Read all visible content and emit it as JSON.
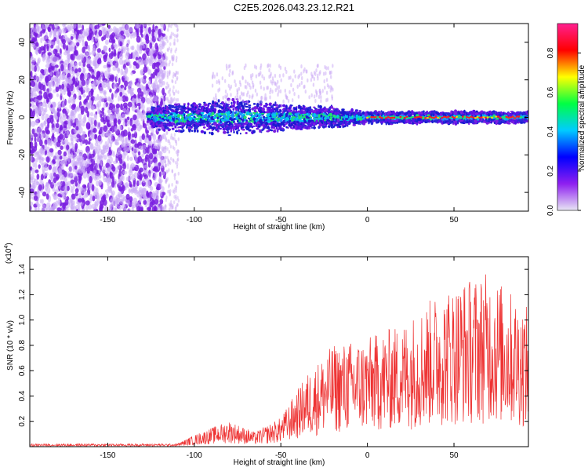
{
  "title": "C2E5.2026.043.23.12.R21",
  "colors": {
    "signal": "#ee3333",
    "scatter_strong": "#7a1fe0",
    "scatter_faint": "#c9a8f5",
    "band_core": "#2a2ad8",
    "axis": "#000000"
  },
  "chart_data": [
    {
      "type": "heatmap",
      "name": "spectrogram",
      "xlabel": "Height of straight line (km)",
      "ylabel": "Frequency (Hz)",
      "xlim": [
        -195,
        93
      ],
      "ylim": [
        -50,
        50
      ],
      "xticks": [
        -150,
        -100,
        -50,
        0,
        50
      ],
      "xtick_labels": [
        "-150",
        "-100",
        "-50",
        "0",
        "50"
      ],
      "yticks": [
        -40,
        -20,
        0,
        20,
        40
      ],
      "ytick_labels": [
        "-40",
        "-20",
        "0",
        "20",
        "40"
      ],
      "noise_region": {
        "x_from": -195,
        "x_to": -117,
        "freq_range": [
          -50,
          50
        ]
      },
      "band": [
        {
          "x": -125,
          "half_width": 5
        },
        {
          "x": -110,
          "half_width": 7
        },
        {
          "x": -95,
          "half_width": 7
        },
        {
          "x": -80,
          "half_width": 9
        },
        {
          "x": -60,
          "half_width": 7
        },
        {
          "x": -40,
          "half_width": 6
        },
        {
          "x": -20,
          "half_width": 5
        },
        {
          "x": 0,
          "half_width": 3
        },
        {
          "x": 50,
          "half_width": 3
        },
        {
          "x": 93,
          "half_width": 3
        }
      ],
      "peak_line": {
        "x_from": 0,
        "x_to": 90,
        "freq": 0
      },
      "colorbar": {
        "label": "Normalized spectral amplitude",
        "range": [
          0,
          0.95
        ],
        "ticks": [
          0.0,
          0.2,
          0.4,
          0.6,
          0.8
        ],
        "tick_labels": [
          "0.0",
          "0.2",
          "0.4",
          "0.6",
          "0.8"
        ],
        "colors": [
          "#e8e6f4",
          "#8e1ff0",
          "#0000ff",
          "#00ccff",
          "#00ff44",
          "#ffff00",
          "#ff0000",
          "#ff2090"
        ]
      }
    },
    {
      "type": "line",
      "name": "snr",
      "xlabel": "Height of straight line (km)",
      "ylabel": "SNR (10 * v/v)",
      "scale_label": "(x10",
      "scale_exponent": "4",
      "scale_close": ")",
      "xlim": [
        -195,
        93
      ],
      "ylim": [
        0,
        1.5
      ],
      "xticks": [
        -150,
        -100,
        -50,
        0,
        50
      ],
      "xtick_labels": [
        "-150",
        "-100",
        "-50",
        "0",
        "50"
      ],
      "yticks": [
        0.2,
        0.4,
        0.6,
        0.8,
        1.0,
        1.2,
        1.4
      ],
      "ytick_labels": [
        "0.2",
        "0.4",
        "0.6",
        "0.8",
        "1.0",
        "1.2",
        "1.4"
      ],
      "envelope": [
        {
          "x": -195,
          "value": 0.02
        },
        {
          "x": -110,
          "value": 0.02
        },
        {
          "x": -100,
          "value": 0.08
        },
        {
          "x": -80,
          "value": 0.18
        },
        {
          "x": -65,
          "value": 0.1
        },
        {
          "x": -50,
          "value": 0.2
        },
        {
          "x": -35,
          "value": 0.5
        },
        {
          "x": -20,
          "value": 0.7
        },
        {
          "x": 0,
          "value": 0.75
        },
        {
          "x": 20,
          "value": 0.85
        },
        {
          "x": 40,
          "value": 1.05
        },
        {
          "x": 55,
          "value": 1.15
        },
        {
          "x": 70,
          "value": 1.2
        },
        {
          "x": 80,
          "value": 1.1
        },
        {
          "x": 93,
          "value": 0.95
        }
      ]
    }
  ]
}
